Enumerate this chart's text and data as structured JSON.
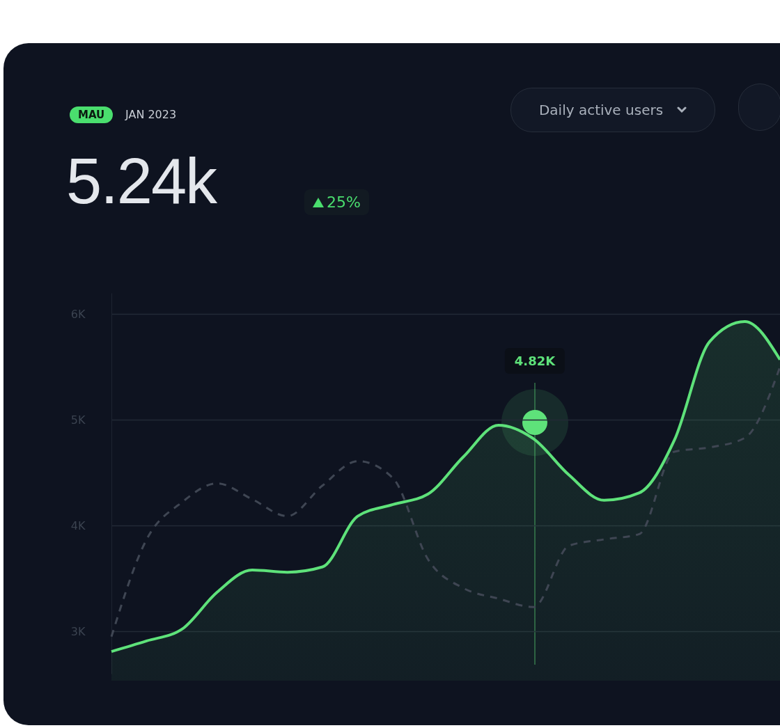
{
  "chart_data": {
    "type": "line",
    "annotations": [
      "MAU",
      "JAN 2023",
      "5.24k",
      "25%",
      "Daily active users",
      "4.82K"
    ],
    "categories": [
      null,
      null,
      null,
      null,
      null,
      null,
      null,
      null,
      null,
      null,
      null,
      null,
      null,
      null,
      null,
      null,
      null,
      null,
      null,
      null
    ],
    "series": [
      {
        "type": "area",
        "color": "#5ee27a",
        "values": [
          2.81,
          2.91,
          3.02,
          3.37,
          3.58,
          3.56,
          3.61,
          4.09,
          4.2,
          4.3,
          4.65,
          4.95,
          4.82,
          4.48,
          4.24,
          4.31,
          4.81,
          5.74,
          5.93,
          5.57
        ]
      },
      {
        "color": "#3f4653",
        "line_style": "dashed",
        "values": [
          2.95,
          3.87,
          4.22,
          4.4,
          4.25,
          4.09,
          4.38,
          4.61,
          4.45,
          3.68,
          3.41,
          3.31,
          3.23,
          3.81,
          3.87,
          3.92,
          4.7,
          4.74,
          4.83,
          5.5
        ]
      }
    ],
    "ylim": [
      2.6,
      6.2
    ],
    "yticks": [
      {
        "value": 3,
        "label": "3K"
      },
      {
        "value": 4,
        "label": "4K"
      },
      {
        "value": 5,
        "label": "5K"
      },
      {
        "value": 6,
        "label": "6K"
      }
    ],
    "grid": "y",
    "tick_labels": "y"
  }
}
